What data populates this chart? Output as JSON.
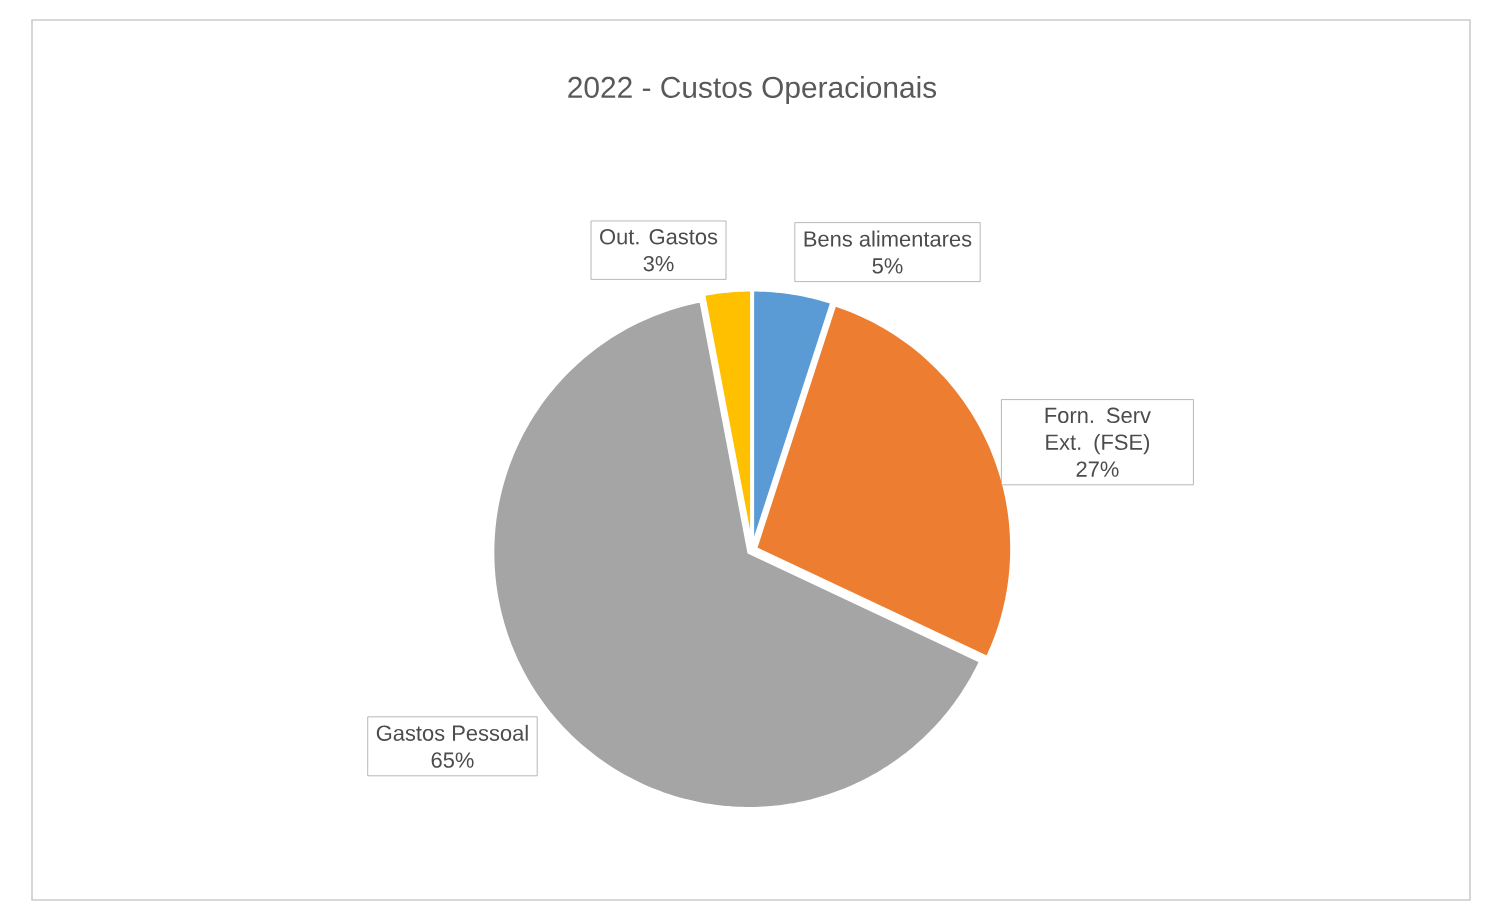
{
  "chart_data": {
    "type": "pie",
    "title": "2022 - Custos Operacionais",
    "categories": [
      "Bens alimentares",
      "Forn. Serv Ext. (FSE)",
      "Gastos Pessoal",
      "Out. Gastos"
    ],
    "values": [
      5,
      27,
      65,
      3
    ],
    "colors": [
      "#5b9bd5",
      "#ed7d31",
      "#a5a5a5",
      "#ffc000"
    ],
    "value_labels": [
      "5%",
      "27%",
      "65%",
      "3%"
    ]
  }
}
